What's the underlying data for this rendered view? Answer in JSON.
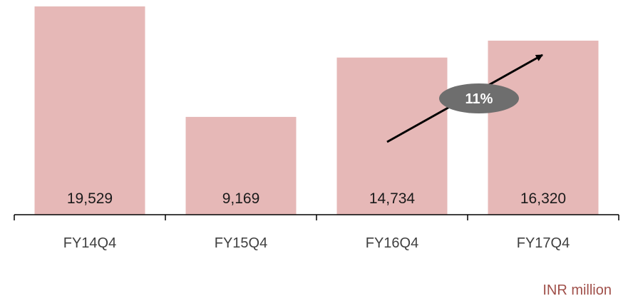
{
  "chart_data": {
    "type": "bar",
    "categories": [
      "FY14Q4",
      "FY15Q4",
      "FY16Q4",
      "FY17Q4"
    ],
    "values": [
      19529,
      9169,
      14734,
      16320
    ],
    "value_labels": [
      "19,529",
      "9,169",
      "14,734",
      "16,320"
    ],
    "unit_label": "INR million",
    "annotation": "11%",
    "ylim": [
      0,
      19529
    ],
    "grid": false,
    "legend": "none"
  },
  "colors": {
    "bar": "#e6b8b7",
    "axis": "#000000",
    "arrow": "#000000",
    "badge": "#6e6e6e",
    "badge_text": "#ffffff",
    "unit_text": "#a0504a"
  }
}
